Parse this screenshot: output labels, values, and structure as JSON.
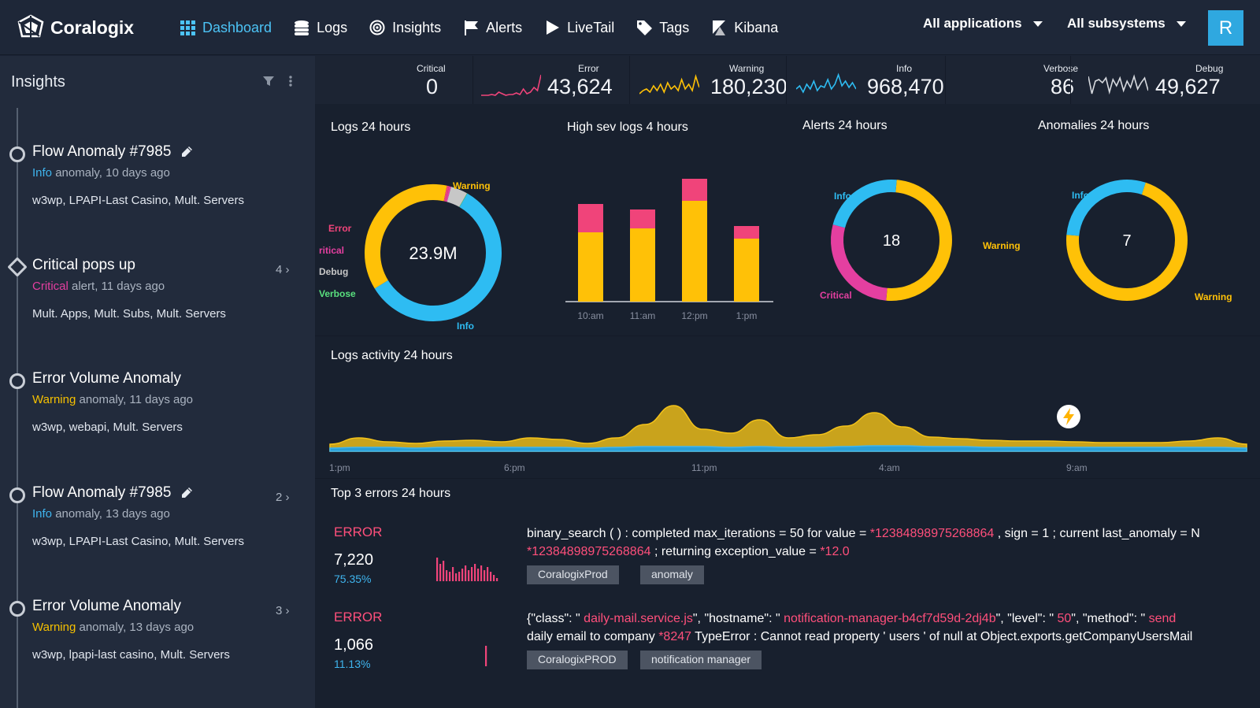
{
  "brand": "Coralogix",
  "nav": [
    {
      "label": "Dashboard",
      "icon": "grid-icon",
      "active": true
    },
    {
      "label": "Logs",
      "icon": "database-icon"
    },
    {
      "label": "Insights",
      "icon": "target-icon"
    },
    {
      "label": "Alerts",
      "icon": "flag-icon"
    },
    {
      "label": "LiveTail",
      "icon": "play-icon"
    },
    {
      "label": "Tags",
      "icon": "tag-icon"
    },
    {
      "label": "Kibana",
      "icon": "kibana-icon"
    }
  ],
  "filters": {
    "applications": "All applications",
    "subsystems": "All subsystems"
  },
  "user_initial": "R",
  "sidebar": {
    "title": "Insights",
    "items": [
      {
        "title": "Flow Anomaly #7985",
        "severity": "Info",
        "rest": " anomaly, 10 days ago",
        "tags": "w3wp, LPAPI-Last Casino, Mult. Servers",
        "count": "",
        "shape": "circle",
        "editable": true
      },
      {
        "title": "Critical pops up",
        "severity": "Critical",
        "rest": " alert, 11 days ago",
        "tags": "Mult. Apps, Mult. Subs, Mult. Servers",
        "count": "4 ›",
        "shape": "diamond",
        "editable": false
      },
      {
        "title": "Error Volume Anomaly",
        "severity": "Warning",
        "rest": " anomaly, 11 days ago",
        "tags": "w3wp, webapi, Mult. Servers",
        "count": "",
        "shape": "circle",
        "editable": false
      },
      {
        "title": "Flow Anomaly #7985",
        "severity": "Info",
        "rest": " anomaly, 13 days ago",
        "tags": "w3wp, LPAPI-Last Casino, Mult. Servers",
        "count": "2 ›",
        "shape": "circle",
        "editable": true
      },
      {
        "title": "Error Volume Anomaly",
        "severity": "Warning",
        "rest": " anomaly, 13 days ago",
        "tags": "w3wp, lpapi-last casino, Mult. Servers",
        "count": "3 ›",
        "shape": "circle",
        "editable": false
      }
    ]
  },
  "stats": {
    "critical": {
      "label": "Critical",
      "value": "0"
    },
    "error": {
      "label": "Error",
      "value": "43,624"
    },
    "warning": {
      "label": "Warning",
      "value": "180,230"
    },
    "info": {
      "label": "Info",
      "value": "968,470"
    },
    "verbose": {
      "label": "Verbose",
      "value": "86"
    },
    "debug": {
      "label": "Debug",
      "value": "49,627"
    }
  },
  "colors": {
    "info": "#2ebcf2",
    "warning": "#ffc107",
    "error": "#f0447a",
    "critical": "#e43fa0",
    "debug": "#c7c7c7",
    "verbose": "#59e07e"
  },
  "panels": {
    "logs24": "Logs 24 hours",
    "highsev": "High sev logs 4 hours",
    "alerts24": "Alerts 24 hours",
    "anomalies24": "Anomalies 24 hours",
    "activity": "Logs activity 24 hours",
    "toperrors": "Top 3 errors 24 hours"
  },
  "chart_data": [
    {
      "type": "pie",
      "title": "Logs 24 hours",
      "center_label": "23.9M",
      "categories": [
        "Info",
        "Warning",
        "Error",
        "Critical",
        "Debug",
        "Verbose"
      ],
      "values": [
        58,
        37,
        0.5,
        0.5,
        4,
        0.1
      ],
      "label_text": {
        "Info": "Info",
        "Warning": "Warning",
        "Error": "Error",
        "Critical": "ritical",
        "Debug": "Debug",
        "Verbose": "Verbose"
      }
    },
    {
      "type": "bar",
      "title": "High sev logs 4 hours",
      "categories": [
        "10:am",
        "11:am",
        "12:pm",
        "1:pm"
      ],
      "series": [
        {
          "key": "warning",
          "values": [
            88,
            93,
            128,
            80
          ]
        },
        {
          "key": "error",
          "values": [
            36,
            24,
            28,
            16
          ]
        }
      ],
      "ylim": [
        0,
        160
      ]
    },
    {
      "type": "pie",
      "title": "Alerts 24 hours",
      "center_label": "18",
      "categories": [
        "Warning",
        "Critical",
        "Info"
      ],
      "values": [
        9,
        5,
        4
      ]
    },
    {
      "type": "pie",
      "title": "Anomalies 24 hours",
      "center_label": "7",
      "categories": [
        "Warning",
        "Info"
      ],
      "values": [
        5,
        2
      ]
    },
    {
      "type": "area",
      "title": "Logs activity 24 hours",
      "x_ticks": [
        "1:pm",
        "6:pm",
        "11:pm",
        "4:am",
        "9:am"
      ],
      "series": [
        {
          "key": "warning",
          "values": [
            5,
            12,
            7,
            6,
            8,
            9,
            7,
            12,
            10,
            6,
            12,
            28,
            52,
            22,
            18,
            34,
            12,
            16,
            26,
            42,
            24,
            12,
            10,
            9,
            8,
            8,
            7,
            6,
            6,
            6,
            8,
            12,
            5
          ]
        },
        {
          "key": "info",
          "values": [
            4,
            5,
            5,
            4,
            5,
            5,
            5,
            5,
            5,
            4,
            5,
            6,
            6,
            6,
            5,
            6,
            5,
            5,
            6,
            7,
            7,
            6,
            6,
            5,
            5,
            5,
            5,
            5,
            5,
            5,
            5,
            5,
            4
          ]
        }
      ]
    }
  ],
  "errors": [
    {
      "level": "ERROR",
      "count": "7,220",
      "pct": "75.35%",
      "line1": [
        [
          "binary_search ( ) : completed max_iterations = 50 for value = ",
          false
        ],
        [
          "*12384898975268864",
          true
        ],
        [
          " , sign = 1 ; current last_anomaly = N",
          false
        ]
      ],
      "line2": [
        [
          "*12384898975268864",
          true
        ],
        [
          " ; returning exception_value = ",
          false
        ],
        [
          "*12.0",
          true
        ]
      ],
      "chips": [
        "CoralogixProd",
        "anomaly"
      ],
      "spark": [
        30,
        22,
        26,
        14,
        12,
        18,
        10,
        12,
        16,
        20,
        14,
        18,
        22,
        16,
        20,
        14,
        18,
        12,
        8,
        4
      ]
    },
    {
      "level": "ERROR",
      "count": "1,066",
      "pct": "11.13%",
      "line1": [
        [
          "{\"class\": \" ",
          false
        ],
        [
          "daily-mail.service.js",
          true
        ],
        [
          "\", \"hostname\": \" ",
          false
        ],
        [
          "notification-manager-b4cf7d59d-2dj4b",
          true
        ],
        [
          "\", \"level\": \" ",
          false
        ],
        [
          "50",
          true
        ],
        [
          "\", \"method\": \" ",
          false
        ],
        [
          "send",
          true
        ]
      ],
      "line2": [
        [
          "daily email to company ",
          false
        ],
        [
          "*8247",
          true
        ],
        [
          " TypeError : Cannot read property ' users ' of null at Object.exports.getCompanyUsersMail",
          false
        ]
      ],
      "chips": [
        "CoralogixPROD",
        "notification manager"
      ],
      "spark": [
        26
      ]
    }
  ]
}
